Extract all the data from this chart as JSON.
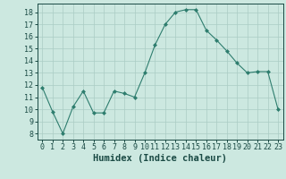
{
  "x": [
    0,
    1,
    2,
    3,
    4,
    5,
    6,
    7,
    8,
    9,
    10,
    11,
    12,
    13,
    14,
    15,
    16,
    17,
    18,
    19,
    20,
    21,
    22,
    23
  ],
  "y": [
    11.8,
    9.8,
    8.0,
    10.2,
    11.5,
    9.7,
    9.7,
    11.5,
    11.3,
    11.0,
    13.0,
    15.3,
    17.0,
    18.0,
    18.2,
    18.2,
    16.5,
    15.7,
    14.8,
    13.8,
    13.0,
    13.1,
    13.1,
    10.0
  ],
  "xlabel": "Humidex (Indice chaleur)",
  "ylim_min": 7.5,
  "ylim_max": 18.7,
  "yticks": [
    8,
    9,
    10,
    11,
    12,
    13,
    14,
    15,
    16,
    17,
    18
  ],
  "xticks": [
    0,
    1,
    2,
    3,
    4,
    5,
    6,
    7,
    8,
    9,
    10,
    11,
    12,
    13,
    14,
    15,
    16,
    17,
    18,
    19,
    20,
    21,
    22,
    23
  ],
  "line_color": "#2e7d6e",
  "marker_color": "#2e7d6e",
  "bg_color": "#cce8e0",
  "grid_color": "#aaccC4",
  "label_color": "#1a4a44",
  "tick_label_size": 6.0,
  "xlabel_size": 7.5
}
